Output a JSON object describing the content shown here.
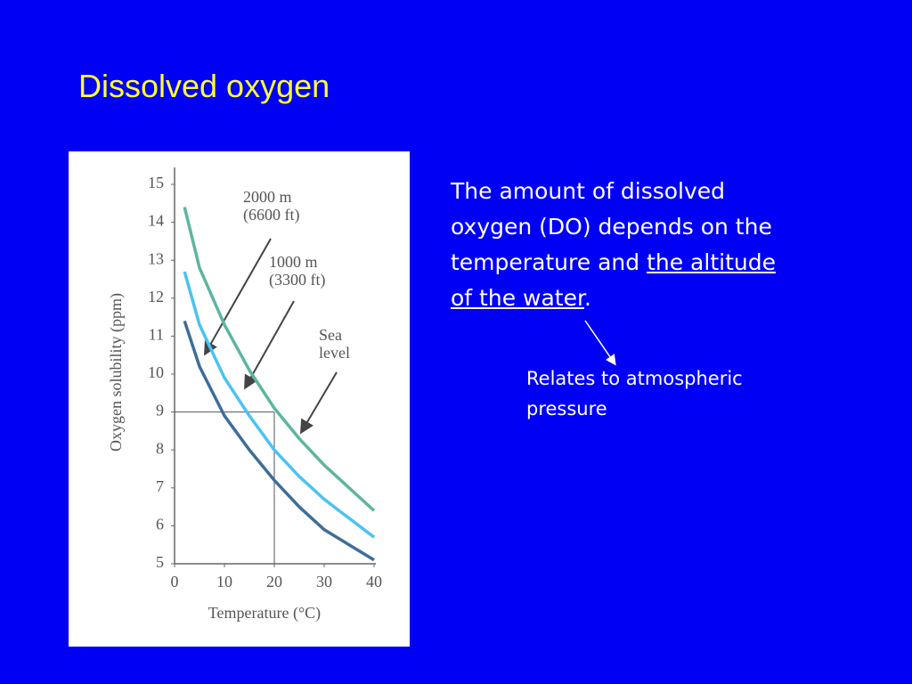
{
  "slide": {
    "title": "Dissolved oxygen",
    "body": [
      "The amount of dissolved oxygen (DO) depends on the temperature and ",
      "the altitude of the water",
      "."
    ],
    "note": "Relates to atmospheric pressure"
  },
  "chart_data": {
    "type": "line",
    "x_label": "Temperature (°C)",
    "y_label": "Oxygen solubility (ppm)",
    "x": [
      2,
      5,
      10,
      15,
      20,
      25,
      30,
      35,
      40
    ],
    "series": [
      {
        "name": "Sea level",
        "color": "#5fb5a0",
        "values": [
          14.4,
          12.8,
          11.3,
          10.1,
          9.1,
          8.3,
          7.6,
          7.0,
          6.4
        ]
      },
      {
        "name": "1000 m (3300 ft)",
        "color": "#4cc2f2",
        "values": [
          12.7,
          11.3,
          9.9,
          8.9,
          8.0,
          7.3,
          6.7,
          6.2,
          5.7
        ]
      },
      {
        "name": "2000 m (6600 ft)",
        "color": "#3e6e98",
        "values": [
          11.4,
          10.2,
          8.9,
          8.0,
          7.2,
          6.5,
          5.9,
          5.5,
          5.1
        ]
      }
    ],
    "reference": {
      "x": 20,
      "y": 9
    },
    "xlim": [
      0,
      40
    ],
    "xticks": [
      0,
      10,
      20,
      30,
      40
    ],
    "ylim": [
      5,
      15
    ],
    "yticks": [
      5,
      6,
      7,
      8,
      9,
      10,
      11,
      12,
      13,
      14,
      15
    ]
  }
}
